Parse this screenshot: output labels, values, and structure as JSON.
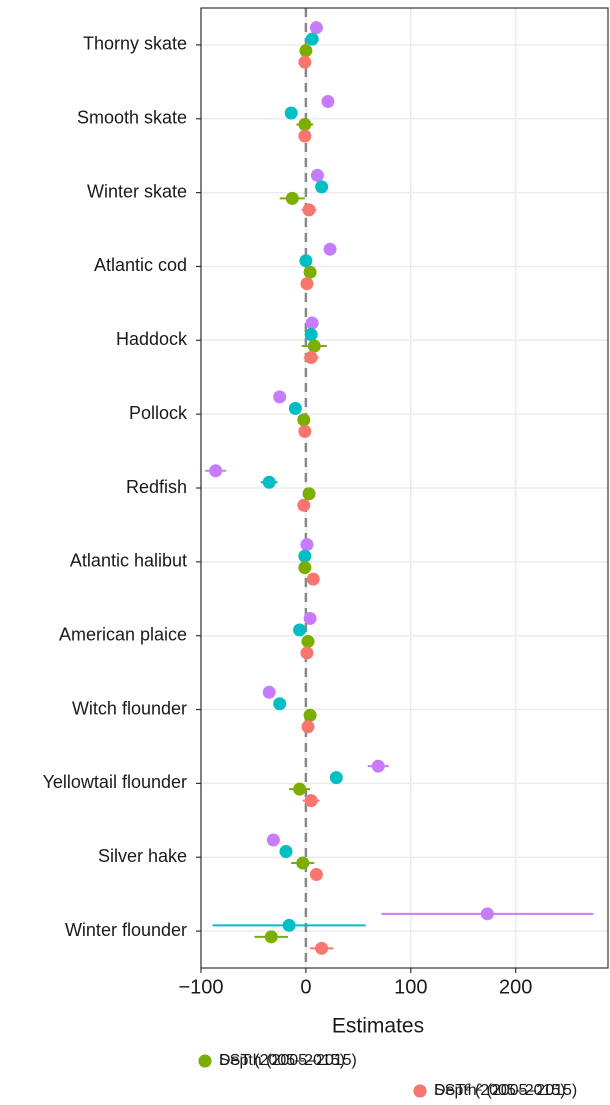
{
  "chart_data": {
    "type": "dot-errorbar",
    "x_label": "Estimates",
    "categories": [
      "Thorny skate",
      "Smooth skate",
      "Winter skate",
      "Atlantic cod",
      "Haddock",
      "Pollock",
      "Redfish",
      "Atlantic halibut",
      "American plaice",
      "Witch flounder",
      "Yellowtail flounder",
      "Silver hake",
      "Winter flounder"
    ],
    "series": [
      {
        "name": "Depth (2005–2015)",
        "color": "#c77cff",
        "values": [
          10,
          21,
          11,
          23,
          6,
          -25,
          -86,
          1,
          4,
          -35,
          69,
          -31,
          173
        ],
        "errors": [
          4,
          5,
          5,
          3,
          4,
          4,
          10,
          3,
          3,
          4,
          10,
          5,
          101
        ]
      },
      {
        "name": "Depth² (2005–2015)",
        "color": "#00bfc4",
        "values": [
          6,
          -14,
          15,
          0,
          5,
          -10,
          -35,
          -1,
          -6,
          -25,
          29,
          -19,
          -16
        ],
        "errors": [
          3,
          5,
          5,
          3,
          3,
          4,
          8,
          3,
          3,
          4,
          5,
          4,
          73
        ]
      },
      {
        "name": "SST (2005–2015)",
        "color": "#7cae00",
        "values": [
          0,
          -1,
          -13,
          4,
          8,
          -2,
          3,
          -1,
          2,
          4,
          -6,
          -3,
          -33
        ],
        "errors": [
          4,
          8,
          12,
          4,
          12,
          6,
          6,
          5,
          6,
          5,
          10,
          11,
          16
        ]
      },
      {
        "name": "SST² (2005–2015)",
        "color": "#f8766d",
        "values": [
          -1,
          -1,
          3,
          1,
          5,
          -1,
          -2,
          7,
          1,
          2,
          5,
          10,
          15
        ],
        "errors": [
          3,
          4,
          7,
          3,
          7,
          4,
          4,
          4,
          4,
          4,
          8,
          6,
          11
        ]
      }
    ],
    "xlim": [
      -100,
      288
    ],
    "xticks": [
      {
        "value": -100,
        "label": "−100"
      },
      0,
      100,
      200
    ],
    "reference_line": 0,
    "grid": true
  }
}
